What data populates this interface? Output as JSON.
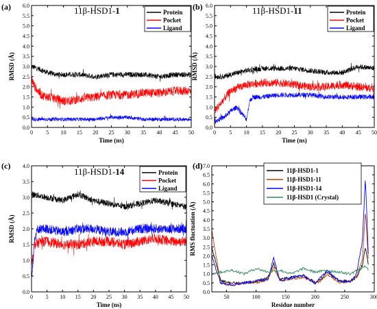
{
  "chart_data": [
    {
      "panel": "(a)",
      "type": "line",
      "title_prefix": "11β-HSD1-",
      "title_bold": "1",
      "xlabel": "Time (ns)",
      "ylabel": "RMSD (Å)",
      "xlim": [
        0,
        50
      ],
      "ylim": [
        0,
        6.0
      ],
      "xticks": [
        0,
        5,
        10,
        15,
        20,
        25,
        30,
        35,
        40,
        45,
        50
      ],
      "yticks": [
        "0.0",
        "0.5",
        "1.0",
        "1.5",
        "2.0",
        "2.5",
        "3.0",
        "3.5",
        "4.0",
        "4.5",
        "5.0",
        "5.5",
        "6.0"
      ],
      "legend_position": "top-right",
      "series": [
        {
          "name": "Protein",
          "color": "#000000",
          "x": [
            0,
            2,
            5,
            8,
            10,
            15,
            20,
            25,
            30,
            35,
            40,
            45,
            50
          ],
          "y": [
            3.0,
            2.9,
            2.7,
            2.6,
            2.6,
            2.6,
            2.5,
            2.6,
            2.6,
            2.6,
            2.5,
            2.6,
            2.6
          ]
        },
        {
          "name": "Pocket",
          "color": "#ff0000",
          "x": [
            0,
            1,
            3,
            5,
            8,
            10,
            12,
            15,
            20,
            25,
            30,
            35,
            40,
            45,
            50
          ],
          "y": [
            2.4,
            2.0,
            1.6,
            1.5,
            1.4,
            1.3,
            1.3,
            1.4,
            1.5,
            1.6,
            1.6,
            1.7,
            1.7,
            1.8,
            1.8
          ]
        },
        {
          "name": "Ligand",
          "color": "#0000ff",
          "x": [
            0,
            5,
            10,
            15,
            20,
            25,
            30,
            35,
            40,
            45,
            50
          ],
          "y": [
            0.4,
            0.4,
            0.4,
            0.4,
            0.4,
            0.5,
            0.5,
            0.4,
            0.4,
            0.4,
            0.4
          ]
        }
      ]
    },
    {
      "panel": "(b)",
      "type": "line",
      "title_prefix": "11β-HSD1-",
      "title_bold": "11",
      "xlabel": "Time (ns)",
      "ylabel": "RMSD (Å)",
      "xlim": [
        0,
        50
      ],
      "ylim": [
        0,
        6.0
      ],
      "xticks": [
        0,
        5,
        10,
        15,
        20,
        25,
        30,
        35,
        40,
        45,
        50
      ],
      "yticks": [
        "0.0",
        "0.5",
        "1.0",
        "1.5",
        "2.0",
        "2.5",
        "3.0",
        "3.5",
        "4.0",
        "4.5",
        "5.0",
        "5.5",
        "6.0"
      ],
      "legend_position": "top-right",
      "series": [
        {
          "name": "Protein",
          "color": "#000000",
          "x": [
            0,
            3,
            5,
            10,
            15,
            20,
            25,
            30,
            35,
            40,
            45,
            50
          ],
          "y": [
            2.5,
            2.5,
            2.6,
            2.8,
            2.9,
            2.9,
            2.9,
            2.8,
            2.7,
            2.7,
            3.0,
            2.9
          ]
        },
        {
          "name": "Pocket",
          "color": "#ff0000",
          "x": [
            0,
            2,
            5,
            8,
            10,
            15,
            20,
            25,
            30,
            35,
            40,
            45,
            50
          ],
          "y": [
            0.8,
            1.2,
            1.8,
            2.0,
            2.1,
            2.2,
            2.2,
            2.1,
            2.0,
            2.0,
            2.1,
            2.0,
            1.9
          ]
        },
        {
          "name": "Ligand",
          "color": "#0000ff",
          "x": [
            0,
            3,
            5,
            7,
            9,
            10,
            11,
            12,
            15,
            20,
            25,
            30,
            35,
            40,
            45,
            50
          ],
          "y": [
            0.3,
            0.5,
            0.8,
            1.0,
            0.6,
            0.4,
            1.3,
            1.5,
            1.5,
            1.6,
            1.6,
            1.6,
            1.5,
            1.5,
            1.5,
            1.5
          ]
        }
      ]
    },
    {
      "panel": "(c)",
      "type": "line",
      "title_prefix": "11β-HSD1-",
      "title_bold": "14",
      "xlabel": "Time (ns)",
      "ylabel": "RMSD (Å)",
      "xlim": [
        0,
        50
      ],
      "ylim": [
        0,
        4.0
      ],
      "xticks": [
        0,
        5,
        10,
        15,
        20,
        25,
        30,
        35,
        40,
        45,
        50
      ],
      "yticks": [
        "0.0",
        "0.5",
        "1.0",
        "1.5",
        "2.0",
        "2.5",
        "3.0",
        "3.5",
        "4.0"
      ],
      "legend_position": "top-right",
      "series": [
        {
          "name": "Protein",
          "color": "#000000",
          "x": [
            0,
            5,
            10,
            15,
            20,
            25,
            30,
            35,
            40,
            45,
            50
          ],
          "y": [
            3.1,
            3.0,
            2.9,
            3.1,
            2.9,
            2.8,
            2.7,
            2.8,
            2.9,
            2.8,
            2.7
          ]
        },
        {
          "name": "Pocket",
          "color": "#ff0000",
          "x": [
            0,
            1,
            3,
            5,
            10,
            15,
            20,
            25,
            30,
            35,
            40,
            45,
            50
          ],
          "y": [
            0.9,
            1.5,
            1.6,
            1.6,
            1.5,
            1.5,
            1.6,
            1.6,
            1.5,
            1.6,
            1.7,
            1.6,
            1.6
          ]
        },
        {
          "name": "Ligand",
          "color": "#0000ff",
          "x": [
            0,
            0.5,
            1,
            2,
            5,
            10,
            15,
            20,
            25,
            30,
            35,
            40,
            45,
            50
          ],
          "y": [
            0.5,
            1.0,
            1.7,
            2.0,
            2.0,
            1.9,
            2.0,
            2.0,
            1.9,
            1.9,
            2.0,
            2.0,
            2.0,
            2.0
          ]
        }
      ]
    },
    {
      "panel": "(d)",
      "type": "line",
      "xlabel": "Residue number",
      "ylabel": "RMS fluctuation (Å)",
      "xlim": [
        25,
        300
      ],
      "ylim": [
        0,
        7.0
      ],
      "xticks": [
        50,
        100,
        150,
        200,
        250,
        300
      ],
      "yticks": [
        "0.0",
        "0.5",
        "1.0",
        "1.5",
        "2.0",
        "2.5",
        "3.0",
        "3.5",
        "4.0",
        "4.5",
        "5.0",
        "5.5",
        "6.0",
        "6.5",
        "7.0"
      ],
      "legend_position": "top-left",
      "series": [
        {
          "name": "11β-HSD1-1",
          "color": "#000000",
          "x": [
            25,
            40,
            60,
            80,
            100,
            120,
            130,
            140,
            160,
            180,
            200,
            210,
            220,
            240,
            260,
            270,
            280,
            285,
            290
          ],
          "y": [
            2.5,
            0.6,
            0.5,
            0.5,
            0.6,
            0.8,
            1.6,
            0.7,
            0.8,
            0.9,
            0.5,
            0.7,
            1.1,
            0.6,
            0.6,
            0.8,
            1.5,
            2.5,
            1.5
          ]
        },
        {
          "name": "11β-HSD1-11",
          "color": "#c04000",
          "x": [
            25,
            40,
            60,
            80,
            100,
            120,
            130,
            140,
            160,
            180,
            200,
            210,
            220,
            240,
            260,
            270,
            280,
            285,
            290
          ],
          "y": [
            3.4,
            0.5,
            0.4,
            0.5,
            0.5,
            0.7,
            1.4,
            0.6,
            0.7,
            0.8,
            0.5,
            0.6,
            1.0,
            0.5,
            0.6,
            0.9,
            1.8,
            4.5,
            1.8
          ]
        },
        {
          "name": "11β-HSD1-14",
          "color": "#0000ff",
          "x": [
            25,
            40,
            60,
            80,
            100,
            120,
            130,
            140,
            160,
            180,
            200,
            210,
            220,
            240,
            260,
            270,
            280,
            285,
            290
          ],
          "y": [
            2.0,
            0.5,
            0.4,
            0.5,
            0.6,
            0.7,
            1.9,
            0.6,
            0.8,
            0.9,
            0.5,
            0.8,
            1.2,
            0.6,
            0.6,
            1.0,
            2.8,
            6.4,
            2.0
          ]
        },
        {
          "name": "11β-HSD1 (Crystal)",
          "color": "#2e8b57",
          "x": [
            25,
            40,
            60,
            80,
            100,
            120,
            140,
            160,
            180,
            200,
            220,
            240,
            260,
            270,
            280,
            285,
            290
          ],
          "y": [
            1.0,
            1.1,
            1.2,
            1.0,
            1.3,
            1.1,
            1.2,
            1.0,
            1.3,
            1.1,
            1.2,
            1.1,
            1.0,
            1.2,
            1.3,
            1.5,
            1.2
          ]
        }
      ]
    }
  ]
}
